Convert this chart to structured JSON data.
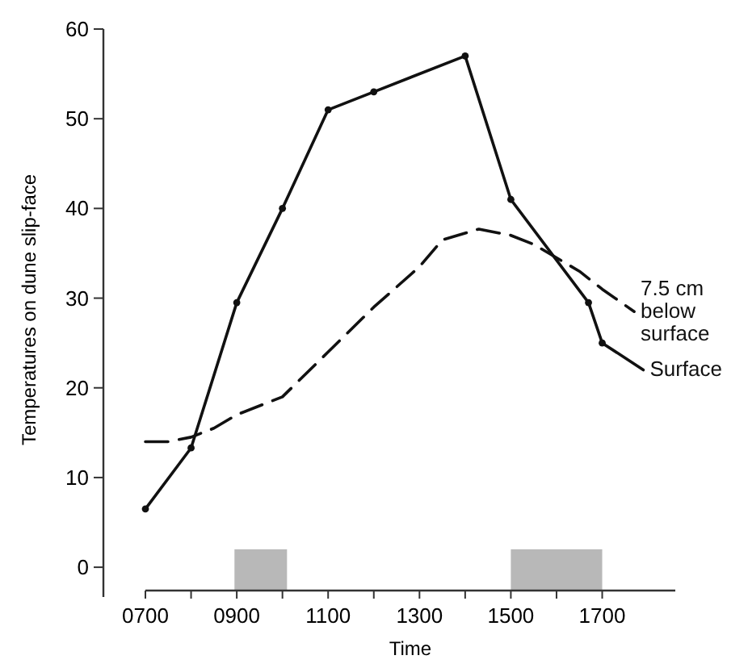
{
  "chart_data": {
    "type": "line",
    "xlabel": "Time",
    "ylabel": "Temperatures on dune slip-face",
    "xlim": [
      700,
      1860
    ],
    "ylim": [
      -2.6,
      60
    ],
    "xticks": [
      {
        "value": 700,
        "label": "0700"
      },
      {
        "value": 800,
        "label": null
      },
      {
        "value": 900,
        "label": "0900"
      },
      {
        "value": 1000,
        "label": null
      },
      {
        "value": 1100,
        "label": "1100"
      },
      {
        "value": 1200,
        "label": null
      },
      {
        "value": 1300,
        "label": "1300"
      },
      {
        "value": 1400,
        "label": null
      },
      {
        "value": 1500,
        "label": "1500"
      },
      {
        "value": 1600,
        "label": null
      },
      {
        "value": 1700,
        "label": "1700"
      }
    ],
    "yticks": [
      0,
      10,
      20,
      30,
      40,
      50,
      60
    ],
    "grid": false,
    "legend": false,
    "bands": [
      {
        "axis": "x",
        "from": 895,
        "to": 1010,
        "color": "#b8b8b8"
      },
      {
        "axis": "x",
        "from": 1500,
        "to": 1700,
        "color": "#b8b8b8"
      }
    ],
    "series": [
      {
        "name": "Surface",
        "color": "#111111",
        "marker": "circle",
        "line_style": "solid",
        "x": [
          700,
          800,
          900,
          1000,
          1100,
          1200,
          1400,
          1500,
          1670,
          1700,
          1790
        ],
        "values": [
          6.5,
          13.3,
          29.5,
          40,
          51,
          53,
          57,
          41,
          29.5,
          25,
          22
        ]
      },
      {
        "name": "7.5 cm below surface",
        "color": "#111111",
        "marker": "none",
        "line_style": "dashed",
        "x": [
          700,
          750,
          800,
          850,
          900,
          1000,
          1100,
          1200,
          1300,
          1350,
          1430,
          1500,
          1550,
          1600,
          1650,
          1700,
          1770
        ],
        "values": [
          14,
          14,
          14.5,
          15.5,
          17,
          19,
          24,
          29,
          33.5,
          36.5,
          37.7,
          37,
          36,
          34.5,
          33,
          31,
          28.5
        ]
      }
    ]
  }
}
